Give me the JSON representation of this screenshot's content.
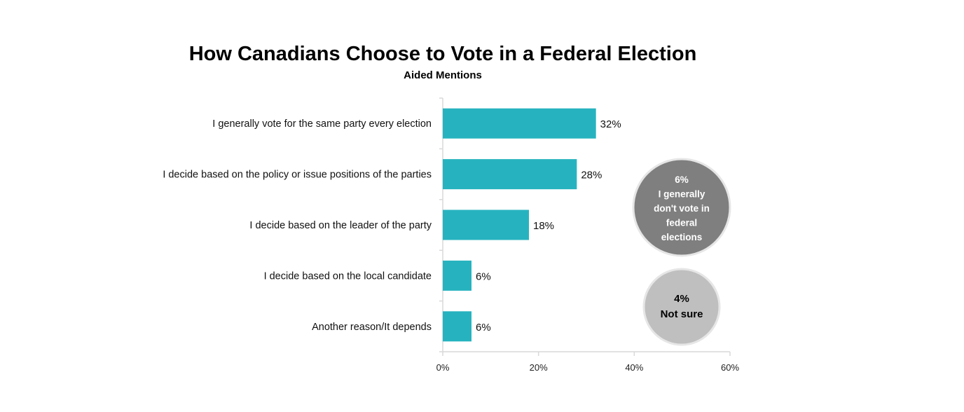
{
  "chart_data": {
    "type": "bar",
    "orientation": "horizontal",
    "title": "How Canadians Choose to Vote in a Federal Election",
    "subtitle": "Aided Mentions",
    "categories": [
      "I generally vote for the same party every election",
      "I decide based on the policy or issue positions of the parties",
      "I decide based on the leader of the party",
      "I decide based on the local candidate",
      "Another reason/It depends"
    ],
    "values": [
      32,
      28,
      18,
      6,
      6
    ],
    "value_labels": [
      "32%",
      "28%",
      "18%",
      "6%",
      "6%"
    ],
    "xlim": [
      0,
      60
    ],
    "xticks": [
      0,
      20,
      40,
      60
    ],
    "xtick_labels": [
      "0%",
      "20%",
      "40%",
      "60%"
    ],
    "grid": false,
    "bar_color": "#26b3bf",
    "callouts": [
      {
        "name": "dont-vote",
        "lines": [
          "6%",
          "I generally",
          "don't vote in",
          "federal",
          "elections"
        ],
        "fill": "#7f7f7f",
        "text_color": "#ffffff"
      },
      {
        "name": "not-sure",
        "lines": [
          "4%",
          "Not sure"
        ],
        "fill": "#bfbfbf",
        "text_color": "#000000"
      }
    ]
  }
}
